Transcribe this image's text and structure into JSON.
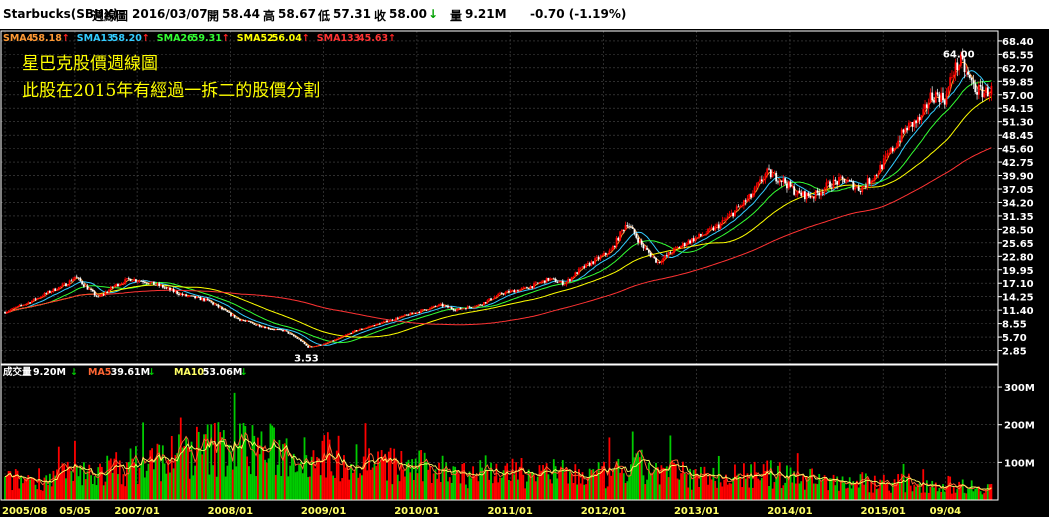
{
  "header": {
    "symbol": "Starbucks(SBUX)",
    "period": "週線圖",
    "date": "2016/03/07",
    "open_label": "開",
    "open": "58.44",
    "high_label": "高",
    "high": "58.67",
    "low_label": "低",
    "low": "57.31",
    "close_label": "收",
    "close": "58.00",
    "close_arrow": "↓",
    "volume_label": "量",
    "volume": "9.21M",
    "change": "-0.70 (-1.19%)"
  },
  "ma_legend": [
    {
      "label": "SMA4",
      "value": "58.18",
      "arrow": "↑",
      "color": "#ff9933"
    },
    {
      "label": "SMA13",
      "value": "58.20",
      "arrow": "↑",
      "color": "#33ccff"
    },
    {
      "label": "SMA26",
      "value": "59.31",
      "arrow": "↑",
      "color": "#33ff33"
    },
    {
      "label": "SMA52",
      "value": "56.04",
      "arrow": "↑",
      "color": "#ffff00"
    },
    {
      "label": "SMA133",
      "value": "45.63",
      "arrow": "↑",
      "color": "#ff3333"
    }
  ],
  "annotations": {
    "line1": "星巴克股價週線圖",
    "line2": "此股在2015年有經過一拆二的股價分割",
    "max_label": "64.00",
    "min_label": "3.53"
  },
  "volume_legend": [
    {
      "label": "成交量",
      "value": "9.20M",
      "arrow": "↓",
      "color": "#ffffff"
    },
    {
      "label": "MA5",
      "value": "39.61M",
      "arrow": "↓",
      "color": "#ff6633"
    },
    {
      "label": "MA10",
      "value": "53.06M",
      "arrow": "↓",
      "color": "#ffff66"
    }
  ],
  "colors": {
    "up": "#ff0000",
    "down": "#00cc00",
    "grid": "#4a4a4a",
    "axis": "#ffffff"
  },
  "chart_data": [
    {
      "type": "line",
      "title": "",
      "y_ticks": [
        "68.40",
        "65.55",
        "62.70",
        "59.85",
        "57.00",
        "54.15",
        "51.30",
        "48.45",
        "45.60",
        "42.75",
        "39.90",
        "37.05",
        "34.20",
        "31.35",
        "28.50",
        "25.65",
        "22.80",
        "19.95",
        "17.10",
        "14.25",
        "11.40",
        "8.55",
        "5.70",
        "2.85"
      ],
      "ylim": [
        0,
        70.5
      ],
      "x_ticks": [
        "2005/08",
        "05/05",
        "2007/01",
        "2008/01",
        "2009/01",
        "2010/01",
        "2011/01",
        "2012/01",
        "2013/01",
        "2014/01",
        "2015/01",
        "09/04"
      ],
      "x_tick_dates": [
        "2005-08",
        "2006-05",
        "2007-01",
        "2008-01",
        "2009-01",
        "2010-01",
        "2011-01",
        "2012-01",
        "2013-01",
        "2014-01",
        "2015-01",
        "2015-09"
      ],
      "xlim": [
        "2005-08",
        "2016-03"
      ],
      "candles": "weekly OHLC, 2005/08 – 2016/03",
      "price_path": [
        [
          "2005-08",
          11.0
        ],
        [
          "2005-11",
          13.0
        ],
        [
          "2006-02",
          15.5
        ],
        [
          "2006-04",
          17.0
        ],
        [
          "2006-05",
          18.5
        ],
        [
          "2006-07",
          15.5
        ],
        [
          "2006-08",
          14.0
        ],
        [
          "2006-10",
          16.5
        ],
        [
          "2006-12",
          18.0
        ],
        [
          "2007-02",
          17.5
        ],
        [
          "2007-04",
          16.5
        ],
        [
          "2007-07",
          14.5
        ],
        [
          "2007-10",
          13.5
        ],
        [
          "2007-12",
          11.5
        ],
        [
          "2008-02",
          9.5
        ],
        [
          "2008-04",
          8.5
        ],
        [
          "2008-06",
          7.5
        ],
        [
          "2008-08",
          7.0
        ],
        [
          "2008-10",
          5.0
        ],
        [
          "2008-11",
          3.53
        ],
        [
          "2009-01",
          4.2
        ],
        [
          "2009-03",
          5.5
        ],
        [
          "2009-05",
          7.0
        ],
        [
          "2009-07",
          8.0
        ],
        [
          "2009-09",
          9.0
        ],
        [
          "2009-11",
          10.0
        ],
        [
          "2010-01",
          11.0
        ],
        [
          "2010-04",
          12.5
        ],
        [
          "2010-06",
          11.5
        ],
        [
          "2010-09",
          12.5
        ],
        [
          "2010-12",
          15.0
        ],
        [
          "2011-03",
          16.0
        ],
        [
          "2011-06",
          18.0
        ],
        [
          "2011-08",
          17.0
        ],
        [
          "2011-10",
          20.0
        ],
        [
          "2011-12",
          22.0
        ],
        [
          "2012-02",
          24.0
        ],
        [
          "2012-04",
          30.0
        ],
        [
          "2012-06",
          25.0
        ],
        [
          "2012-08",
          21.5
        ],
        [
          "2012-10",
          24.0
        ],
        [
          "2012-12",
          26.0
        ],
        [
          "2013-02",
          27.5
        ],
        [
          "2013-04",
          29.5
        ],
        [
          "2013-06",
          32.5
        ],
        [
          "2013-08",
          35.5
        ],
        [
          "2013-10",
          40.5
        ],
        [
          "2013-12",
          39.0
        ],
        [
          "2014-02",
          36.0
        ],
        [
          "2014-04",
          35.5
        ],
        [
          "2014-06",
          38.0
        ],
        [
          "2014-08",
          39.0
        ],
        [
          "2014-10",
          37.0
        ],
        [
          "2014-12",
          40.0
        ],
        [
          "2015-02",
          45.0
        ],
        [
          "2015-04",
          50.0
        ],
        [
          "2015-06",
          52.0
        ],
        [
          "2015-07",
          56.5
        ],
        [
          "2015-08",
          57.0
        ],
        [
          "2015-09",
          56.0
        ],
        [
          "2015-10",
          62.0
        ],
        [
          "2015-11",
          64.0
        ],
        [
          "2015-12",
          60.5
        ],
        [
          "2016-01",
          58.0
        ],
        [
          "2016-02",
          57.5
        ],
        [
          "2016-03",
          58.0
        ]
      ],
      "series": [
        {
          "name": "SMA4",
          "smoothing_weeks": 4
        },
        {
          "name": "SMA13",
          "smoothing_weeks": 13
        },
        {
          "name": "SMA26",
          "smoothing_weeks": 26
        },
        {
          "name": "SMA52",
          "smoothing_weeks": 52
        },
        {
          "name": "SMA133",
          "smoothing_weeks": 133
        }
      ],
      "max": {
        "date": "2015-11",
        "value": 64.0
      },
      "min": {
        "date": "2008-11",
        "value": 3.53
      }
    },
    {
      "type": "bar",
      "title": "",
      "y_ticks": [
        "300M",
        "200M",
        "100M"
      ],
      "y_tick_values": [
        300,
        200,
        100
      ],
      "ylim": [
        0,
        348
      ],
      "volume_envelope_millions": [
        [
          "2005-08",
          60
        ],
        [
          "2006-06",
          80
        ],
        [
          "2007-01",
          110
        ],
        [
          "2007-08",
          150
        ],
        [
          "2008-01",
          170
        ],
        [
          "2008-07",
          150
        ],
        [
          "2009-01",
          140
        ],
        [
          "2009-08",
          110
        ],
        [
          "2010-06",
          90
        ],
        [
          "2011-06",
          80
        ],
        [
          "2012-01",
          75
        ],
        [
          "2012-06",
          100
        ],
        [
          "2013-01",
          70
        ],
        [
          "2013-10",
          80
        ],
        [
          "2014-06",
          60
        ],
        [
          "2015-01",
          55
        ],
        [
          "2015-08",
          50
        ],
        [
          "2016-03",
          40
        ]
      ],
      "series": [
        {
          "name": "成交量"
        },
        {
          "name": "MA5"
        },
        {
          "name": "MA10"
        }
      ]
    }
  ]
}
